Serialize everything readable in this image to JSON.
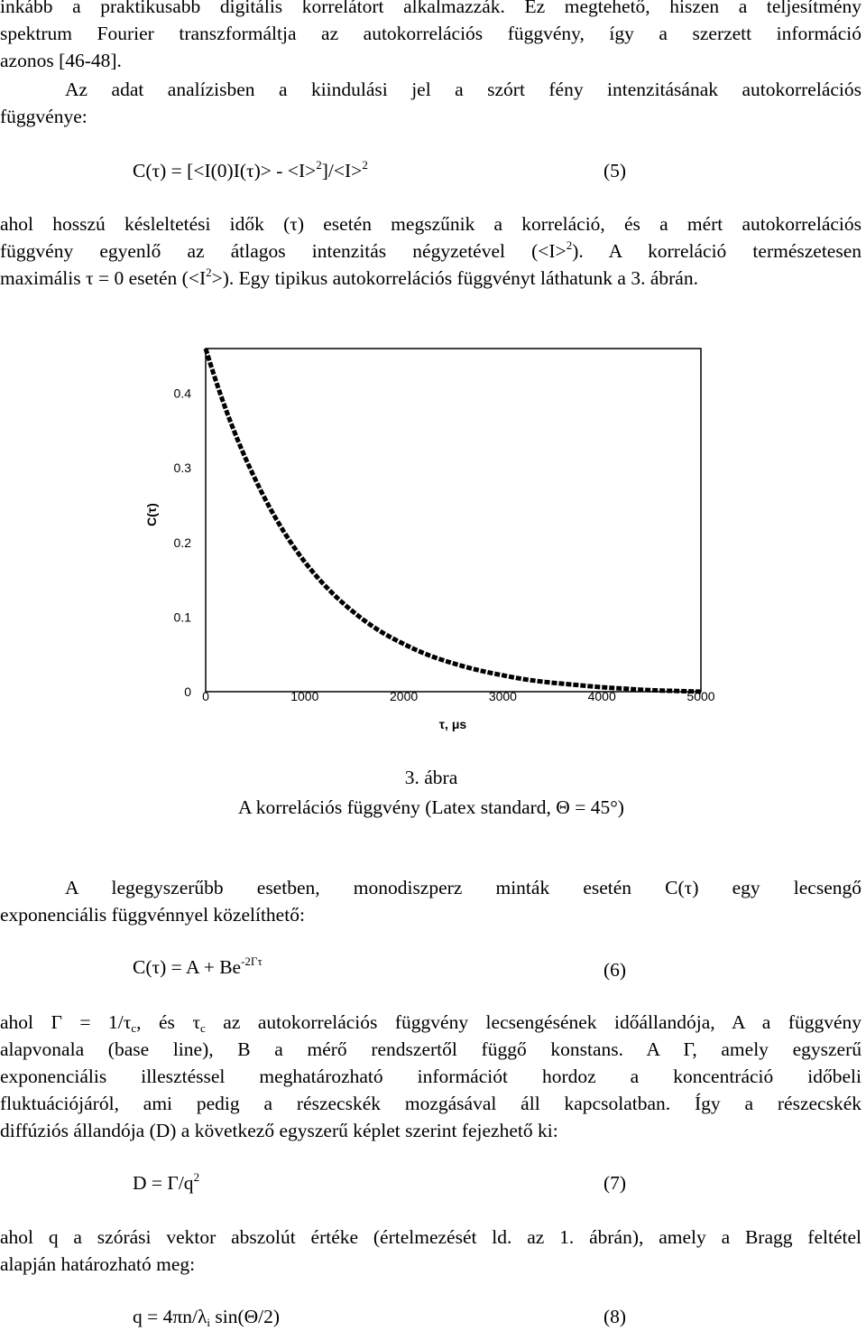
{
  "top_paragraph": {
    "lines": [
      "inkább a praktikusabb digitális korrelátort alkalmazzák. Ez megtehető, hiszen a teljesítmény",
      "spektrum Fourier transzformáltja az autokorrelációs függvény, így a szerzett információ",
      "azonos [46-48]."
    ]
  },
  "intro_paragraph": {
    "lines": [
      "Az adat analízisben a kiindulási jel a szórt fény intenzitásának autokorrelációs",
      "függvénye:"
    ]
  },
  "eq5": {
    "lhs": "C(τ) = [<I(0)I(τ)> - <I>",
    "sup1": "2",
    "mid": "]/<I>",
    "sup2": "2",
    "number": "(5)"
  },
  "para_after_eq5": {
    "line1": "ahol hosszú késleltetési idők (τ) esetén megszűnik a korreláció, és a mért autokorrelációs",
    "line2_a": "függvény egyenlő az átlagos intenzitás négyzetével (<I>",
    "line2_sup": "2",
    "line2_b": "). A korreláció természetesen",
    "line3_a": "maximális τ = 0 esetén (<I",
    "line3_sup": "2",
    "line3_b": ">). Egy tipikus autokorrelációs függvényt láthatunk a 3. ábrán."
  },
  "chart_data": {
    "type": "line",
    "xlabel": "τ, μs",
    "ylabel": "C(τ)",
    "xlim": [
      0,
      5000
    ],
    "ylim": [
      0,
      0.46
    ],
    "x_ticks": [
      "0",
      "1000",
      "2000",
      "3000",
      "4000",
      "5000"
    ],
    "y_ticks": [
      "0",
      "0.1",
      "0.2",
      "0.3",
      "0.4"
    ],
    "grid": false,
    "series": [
      {
        "x": [
          0,
          250,
          500,
          750,
          1000,
          1250,
          1500,
          1750,
          2000,
          2250,
          2500,
          2750,
          3000,
          3250,
          3500,
          3750,
          4000,
          4250,
          4500,
          4750,
          5000
        ],
        "y": [
          0.46,
          0.362,
          0.285,
          0.223,
          0.174,
          0.136,
          0.106,
          0.082,
          0.064,
          0.049,
          0.038,
          0.029,
          0.022,
          0.016,
          0.012,
          0.009,
          0.006,
          0.004,
          0.002,
          0.001,
          0.0
        ]
      }
    ]
  },
  "figure_caption": {
    "number": "3. ábra",
    "text": "A korrelációs függvény (Latex standard, Θ = 45°)"
  },
  "para_monodisperse": {
    "lines": [
      "A legegyszerűbb esetben, monodiszperz minták esetén C(τ) egy lecsengő",
      "exponenciális függvénnyel közelíthető:"
    ]
  },
  "eq6": {
    "lhs": "C(τ) = A + Be",
    "sup": "-2Γτ",
    "number": "(6)"
  },
  "para_gamma": {
    "line1_a": "ahol Γ = 1/τ",
    "line1_sub1": "c",
    "line1_b": ", és τ",
    "line1_sub2": "c",
    "line1_c": " az autokorrelációs függvény lecsengésének időállandója, A a függvény",
    "line2": "alapvonala (base line), B a mérő rendszertől függő konstans. A Γ, amely egyszerű",
    "line3": "exponenciális illesztéssel meghatározható információt hordoz a koncentráció időbeli",
    "line4": "fluktuációjáról, ami pedig a részecskék mozgásával áll kapcsolatban. Így a részecskék",
    "line5": "diffúziós állandója (D) a következő egyszerű képlet szerint fejezhető ki:"
  },
  "eq7": {
    "lhs": "D = Γ/q",
    "sup": "2",
    "number": "(7)"
  },
  "para_q": {
    "lines": [
      "ahol q a szórási vektor abszolút értéke (értelmezését ld. az 1. ábrán), amely a Bragg feltétel",
      "alapján határozható meg:"
    ]
  },
  "eq8": {
    "lhs": "q = 4πn/λ",
    "sub": "i",
    "rhs": " sin(Θ/2)",
    "number": "(8)"
  }
}
